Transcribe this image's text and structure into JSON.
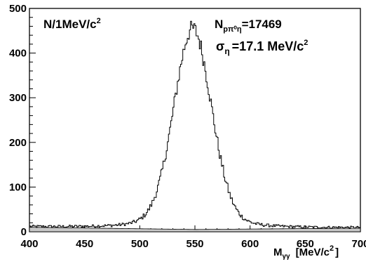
{
  "chart_data": {
    "type": "histogram",
    "ylabel_text": "N/1MeV/c",
    "ylabel_sup": "2",
    "xlabel_main": "M",
    "xlabel_sub": "γγ",
    "xlabel_unit": "[MeV/c",
    "xlabel_sup": "2",
    "xlabel_close": "]",
    "annot_count_main": "N",
    "annot_count_sub": "pπ⁰η",
    "annot_count_value": "=17469",
    "annot_sigma_symbol": "σ",
    "annot_sigma_sub": "η",
    "annot_sigma_value": "=17.1 MeV/c",
    "annot_sigma_sup": "2",
    "xlim": [
      400,
      700
    ],
    "ylim": [
      0,
      500
    ],
    "xticks": [
      400,
      450,
      500,
      550,
      600,
      650,
      700
    ],
    "yticks": [
      0,
      100,
      200,
      300,
      400,
      500
    ],
    "bin_width": 1,
    "signal": {
      "mean": 548,
      "sigma": 17.1,
      "peak": 450
    },
    "background": {
      "x": [
        400,
        520,
        550,
        600,
        650,
        700
      ],
      "y": [
        10,
        6,
        5,
        6,
        7,
        8
      ]
    },
    "fill_color": "#c8c8c8"
  }
}
